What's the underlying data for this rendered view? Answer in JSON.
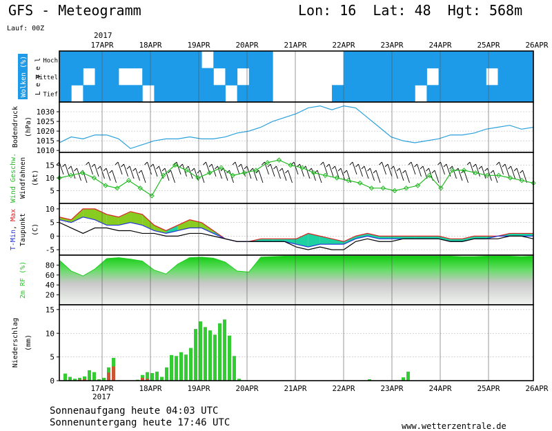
{
  "header": {
    "title": "GFS - Meteogramm",
    "location": "Lon: 16  Lat: 48  Hgt: 568m",
    "run": "Lauf: 00Z"
  },
  "x_axis": {
    "year": "2017",
    "days": [
      "17APR",
      "18APR",
      "19APR",
      "20APR",
      "21APR",
      "22APR",
      "23APR",
      "24APR",
      "25APR",
      "26APR"
    ]
  },
  "colors": {
    "cloud": "#1e9be8",
    "pressure": "#2aa0dc",
    "wind_speed": "#22bb22",
    "temp_fill": "#1fd0a0",
    "temp_fill_warm": "#88cc22",
    "rh_fill": "#22cc22",
    "rain": "#33cc33",
    "rain_conv": "#cc5533"
  },
  "footer": {
    "sunrise": "Sonnenaufgang heute 04:03 UTC",
    "sunset": "Sonnenuntergang heute 17:46 UTC",
    "site": "www.wetterzentrale.de"
  },
  "chart_data": [
    {
      "type": "heatmap",
      "name": "clouds",
      "ylabel_parts": [
        "Wolken (%)",
        "L e v e l"
      ],
      "levels": [
        "Hoch",
        "Mittel",
        "Tief"
      ],
      "cover": {
        "Hoch": [
          1,
          1,
          1,
          1,
          1,
          1,
          1,
          1,
          1,
          1,
          1,
          1,
          0,
          1,
          1,
          1,
          1,
          1,
          0,
          0,
          0,
          0,
          0,
          0,
          1,
          1,
          1,
          1,
          1,
          1,
          1,
          1,
          1,
          1,
          1,
          1,
          1,
          1,
          1,
          1
        ],
        "Mittel": [
          1,
          1,
          0,
          1,
          1,
          0,
          0,
          1,
          1,
          1,
          1,
          1,
          1,
          0,
          1,
          0,
          1,
          1,
          0,
          0,
          0,
          0,
          0,
          0,
          1,
          1,
          1,
          1,
          1,
          1,
          1,
          0,
          1,
          1,
          1,
          1,
          0,
          1,
          1,
          1
        ],
        "Tief": [
          1,
          0,
          1,
          1,
          1,
          1,
          1,
          0,
          1,
          1,
          1,
          1,
          1,
          1,
          0,
          1,
          1,
          1,
          0,
          0,
          0,
          0,
          0,
          1,
          1,
          1,
          1,
          1,
          1,
          1,
          0,
          1,
          1,
          1,
          1,
          1,
          1,
          1,
          1,
          1
        ]
      }
    },
    {
      "type": "line",
      "name": "pressure",
      "ylabel": "Bodendruck",
      "unit": "(hPa)",
      "ylim": [
        1009,
        1035
      ],
      "yticks": [
        1010,
        1015,
        1020,
        1025,
        1030
      ],
      "values": [
        1014,
        1017,
        1016,
        1018,
        1018,
        1016,
        1011,
        1013,
        1015,
        1016,
        1016,
        1017,
        1016,
        1016,
        1017,
        1019,
        1020,
        1022,
        1025,
        1027,
        1029,
        1032,
        1033,
        1031,
        1033,
        1032,
        1027,
        1022,
        1017,
        1015,
        1014,
        1015,
        1016,
        1018,
        1018,
        1019,
        1021,
        1022,
        1023,
        1021,
        1022
      ]
    },
    {
      "type": "line",
      "name": "wind",
      "ylabel": "Wind Geschw.",
      "ylabel2": "Windfahnen",
      "unit": "(kt)",
      "ylim": [
        0,
        20
      ],
      "yticks": [
        5,
        10,
        15
      ],
      "values": [
        10,
        11,
        12,
        10,
        7,
        6,
        9,
        6,
        3,
        11,
        15,
        13,
        10,
        12,
        14,
        11,
        12,
        13,
        16,
        17,
        15,
        14,
        12,
        11,
        10,
        9,
        8,
        6,
        6,
        5,
        6,
        7,
        11,
        6,
        13,
        13,
        12,
        11,
        11,
        10,
        9,
        8
      ]
    },
    {
      "type": "line",
      "name": "temperature",
      "ylabel_parts": [
        "T-Min",
        "Max"
      ],
      "ylabel2": "Taupunkt",
      "unit": "(C)",
      "ylim": [
        -7,
        12
      ],
      "yticks": [
        -5,
        0,
        5,
        10
      ],
      "series": [
        {
          "name": "T-Max",
          "values": [
            7,
            6,
            10,
            10,
            8,
            7,
            9,
            8,
            4,
            2,
            4,
            6,
            5,
            2,
            -1,
            -2,
            -2,
            -1,
            -1,
            -1,
            -1,
            1,
            0,
            -1,
            -2,
            0,
            1,
            0,
            0,
            0,
            0,
            0,
            0,
            -1,
            -1,
            0,
            0,
            0,
            1,
            1,
            1
          ]
        },
        {
          "name": "T-Min",
          "values": [
            6,
            5,
            7,
            6,
            4,
            4,
            5,
            4,
            2,
            1,
            2,
            3,
            3,
            1,
            -1,
            -2,
            -2,
            -2,
            -2,
            -2,
            -3,
            -4,
            -3,
            -3,
            -3,
            -1,
            0,
            -1,
            -1,
            -1,
            -1,
            -1,
            -1,
            -2,
            -2,
            -1,
            -1,
            0,
            0,
            0,
            0
          ]
        },
        {
          "name": "Taupunkt",
          "values": [
            5,
            3,
            1,
            3,
            3,
            2,
            2,
            1,
            1,
            0,
            0,
            1,
            1,
            0,
            -1,
            -2,
            -2,
            -2,
            -2,
            -2,
            -4,
            -5,
            -4,
            -5,
            -5,
            -2,
            -1,
            -2,
            -2,
            -1,
            -1,
            -1,
            -1,
            -2,
            -2,
            -1,
            -1,
            -1,
            0,
            0,
            -1
          ]
        }
      ]
    },
    {
      "type": "area",
      "name": "humidity",
      "ylabel": "2m RF (%)",
      "ylim": [
        0,
        100
      ],
      "yticks": [
        20,
        40,
        60,
        80
      ],
      "values": [
        90,
        68,
        58,
        72,
        93,
        95,
        92,
        88,
        70,
        62,
        82,
        95,
        96,
        94,
        86,
        68,
        66,
        96,
        97,
        98,
        98,
        98,
        98,
        98,
        98,
        98,
        98,
        98,
        98,
        98,
        98,
        98,
        98,
        98,
        97,
        97,
        98,
        98,
        98,
        97,
        98
      ]
    },
    {
      "type": "bar",
      "name": "precipitation",
      "ylabel": "Niederschlag",
      "unit": "(mm)",
      "ylim": [
        0,
        16
      ],
      "yticks": [
        0,
        5,
        10,
        15
      ],
      "series": [
        {
          "name": "total",
          "values": [
            1.5,
            0.8,
            0.4,
            0.6,
            0.9,
            2.2,
            1.8,
            0.3,
            0.6,
            2.8,
            4.8,
            0.1,
            0,
            0,
            0,
            0.2,
            1.2,
            1.8,
            1.6,
            1.9,
            0.8,
            2.8,
            5.4,
            5.2,
            6.0,
            5.5,
            6.9,
            10.9,
            12.5,
            11.3,
            10.6,
            9.7,
            12.1,
            12.9,
            9.5,
            5.2,
            0.4
          ]
        },
        {
          "name": "convective",
          "values": [
            0,
            0,
            0,
            0.2,
            0.3,
            0,
            0,
            0,
            0,
            1.7,
            3.0,
            0,
            0,
            0,
            0,
            0,
            0.6,
            0.4,
            0,
            0,
            0,
            0,
            0,
            0,
            0,
            0,
            0,
            0,
            0,
            0,
            0,
            0,
            0,
            0,
            0,
            0,
            0
          ]
        }
      ]
    }
  ]
}
